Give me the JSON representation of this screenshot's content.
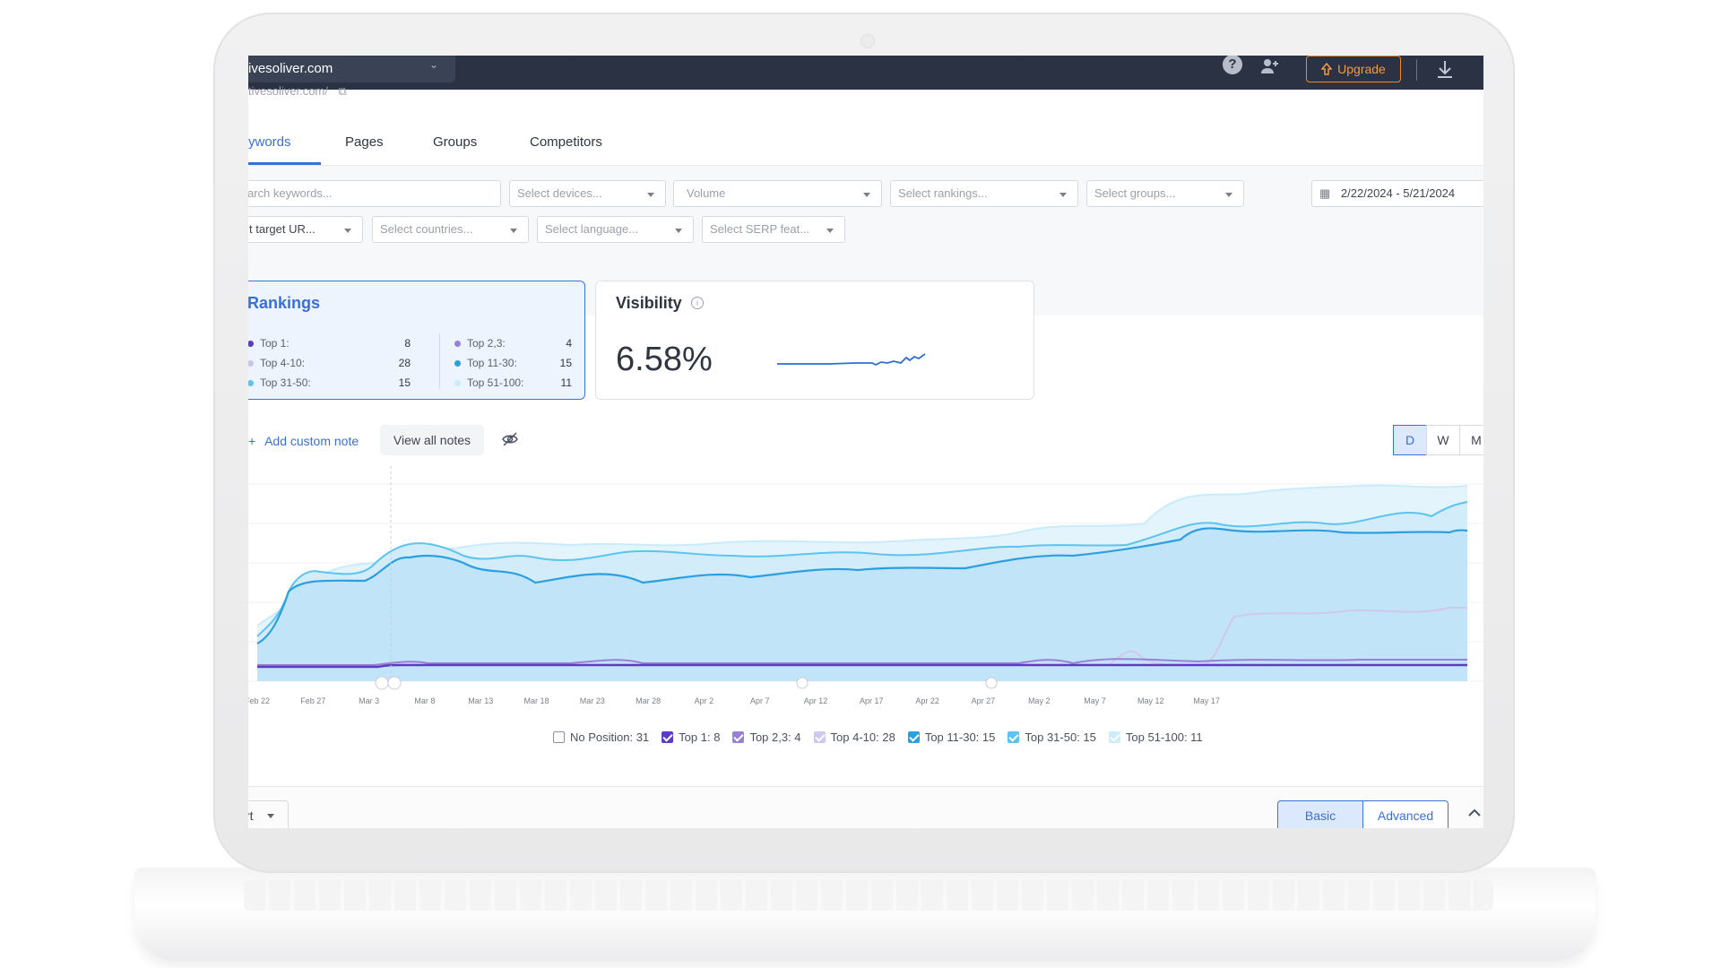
{
  "topbar": {
    "project_name": "ivesoliver.com",
    "upgrade_label": "Upgrade",
    "help_icon": "question-icon",
    "invite_icon": "add-user-icon",
    "download_icon": "download-icon"
  },
  "url": "tivesoliver.com/",
  "tabs": [
    {
      "label": "ywords",
      "active": true
    },
    {
      "label": "Pages",
      "active": false
    },
    {
      "label": "Groups",
      "active": false
    },
    {
      "label": "Competitors",
      "active": false
    }
  ],
  "filters": {
    "search_placeholder": "arch keywords...",
    "devices": "Select devices...",
    "volume": "Volume",
    "rankings": "Select rankings...",
    "groups": "Select groups...",
    "date_range": "2/22/2024 - 5/21/2024",
    "target_url": "t target UR...",
    "countries": "Select countries...",
    "language": "Select language...",
    "serp": "Select SERP feat..."
  },
  "rankings_card": {
    "title": "Rankings",
    "items": [
      {
        "label": "Top 1:",
        "value": "8",
        "color": "#5b3cc4"
      },
      {
        "label": "Top 4-10:",
        "value": "28",
        "color": "#c9c3ea"
      },
      {
        "label": "Top 31-50:",
        "value": "15",
        "color": "#5cc4ef"
      },
      {
        "label": "Top 2,3:",
        "value": "4",
        "color": "#9a7fd6"
      },
      {
        "label": "Top 11-30:",
        "value": "15",
        "color": "#2b9fe0"
      },
      {
        "label": "Top 51-100:",
        "value": "11",
        "color": "#c8ecfb"
      }
    ]
  },
  "visibility_card": {
    "title": "Visibility",
    "value": "6.58%"
  },
  "notes": {
    "add_label": "Add custom note",
    "view_label": "View all notes"
  },
  "period": {
    "d": "D",
    "w": "W",
    "m": "M"
  },
  "chart_data": {
    "type": "area",
    "x": [
      "Feb 22",
      "Feb 27",
      "Mar 3",
      "Mar 8",
      "Mar 13",
      "Mar 18",
      "Mar 23",
      "Mar 28",
      "Apr 2",
      "Apr 7",
      "Apr 12",
      "Apr 17",
      "Apr 22",
      "Apr 27",
      "May 2",
      "May 7",
      "May 12",
      "May 17"
    ],
    "series": [
      {
        "name": "No Position: 31",
        "checked": false,
        "color": "#ffffff"
      },
      {
        "name": "Top 1: 8",
        "checked": true,
        "color": "#5b3cc4"
      },
      {
        "name": "Top 2,3: 4",
        "checked": true,
        "color": "#9a7fd6"
      },
      {
        "name": "Top 4-10: 28",
        "checked": false,
        "color": "#c9c3ea"
      },
      {
        "name": "Top 11-30: 15",
        "checked": true,
        "color": "#2b9fe0"
      },
      {
        "name": "Top 31-50: 15",
        "checked": true,
        "color": "#5cc4ef"
      },
      {
        "name": "Top 51-100: 11",
        "checked": false,
        "color": "#c8ecfb"
      }
    ]
  },
  "bottom": {
    "sort_label": "rt",
    "basic_label": "Basic",
    "advanced_label": "Advanced"
  }
}
